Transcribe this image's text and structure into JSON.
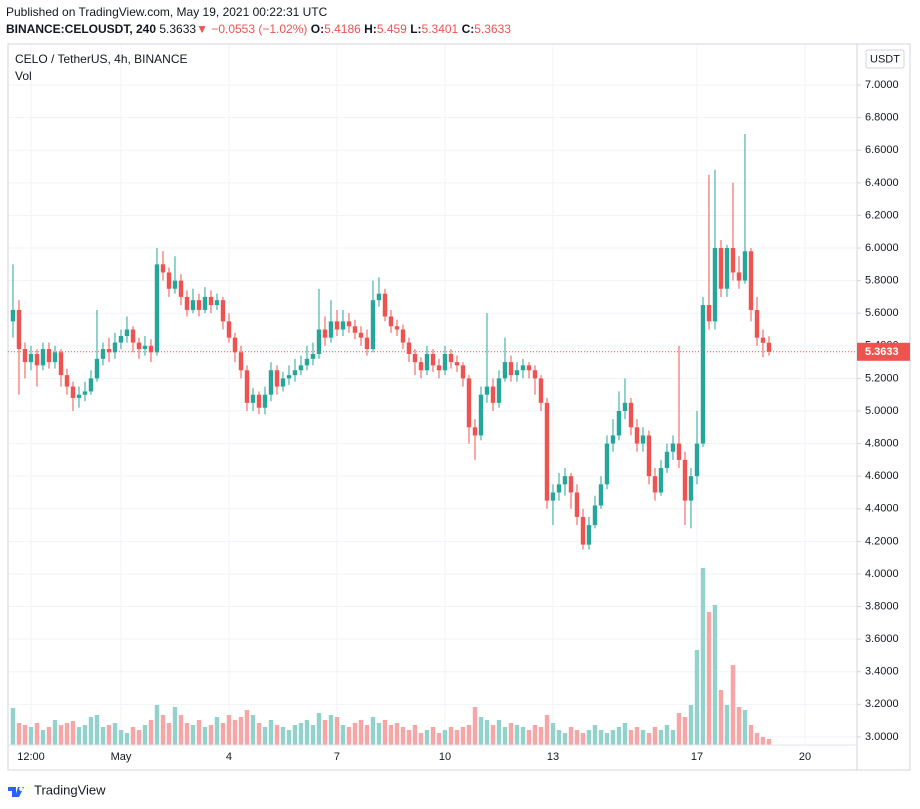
{
  "header": {
    "published": "Published on TradingView.com, May 19, 2021 00:22:31 UTC",
    "symbol": "BINANCE:CELOUSDT, 240",
    "change": {
      "value": -0.0553,
      "label": "−0.0553"
    },
    "change_pct": {
      "value": -1.02,
      "label": "(−1.02%)"
    },
    "o_label": "O:",
    "h_label": "H:",
    "l_label": "L:",
    "c_label": "C:"
  },
  "chart_data": {
    "type": "candlestick",
    "title": "CELO / TetherUS, 4h, BINANCE",
    "volume_label": "Vol",
    "y_unit": "USDT",
    "up_color": "#26a69a",
    "down_color": "#ef5350",
    "volume_up_color": "#93d2cb",
    "volume_down_color": "#f5a6a5",
    "grid": true,
    "ylim": [
      2.797,
      7.252
    ],
    "yticks": [
      {
        "value": 3,
        "label": "3.0000"
      },
      {
        "value": 3.2,
        "label": "3.2000"
      },
      {
        "value": 3.4,
        "label": "3.4000"
      },
      {
        "value": 3.6,
        "label": "3.6000"
      },
      {
        "value": 3.8,
        "label": "3.8000"
      },
      {
        "value": 4,
        "label": "4.0000"
      },
      {
        "value": 4.2,
        "label": "4.2000"
      },
      {
        "value": 4.4,
        "label": "4.4000"
      },
      {
        "value": 4.6,
        "label": "4.6000"
      },
      {
        "value": 4.8,
        "label": "4.8000"
      },
      {
        "value": 5,
        "label": "5.0000"
      },
      {
        "value": 5.2,
        "label": "5.2000"
      },
      {
        "value": 5.4,
        "label": "5.4000"
      },
      {
        "value": 5.6,
        "label": "5.6000"
      },
      {
        "value": 5.8,
        "label": "5.8000"
      },
      {
        "value": 6,
        "label": "6.0000"
      },
      {
        "value": 6.2,
        "label": "6.2000"
      },
      {
        "value": 6.4,
        "label": "6.4000"
      },
      {
        "value": 6.6,
        "label": "6.6000"
      },
      {
        "value": 6.8,
        "label": "6.8000"
      },
      {
        "value": 7,
        "label": "7.0000"
      }
    ],
    "xlim": [
      -0.83,
      140.67
    ],
    "xticks": [
      {
        "value": 3,
        "label": "12:00"
      },
      {
        "value": 18,
        "label": "May"
      },
      {
        "value": 36,
        "label": "4"
      },
      {
        "value": 54,
        "label": "7"
      },
      {
        "value": 72,
        "label": "10"
      },
      {
        "value": 90,
        "label": "13"
      },
      {
        "value": 114,
        "label": "17"
      },
      {
        "value": 132,
        "label": "20"
      }
    ],
    "vlim": [
      0,
      200
    ],
    "ohlc": [
      [
        5.55,
        5.9,
        5.45,
        5.62
      ],
      [
        5.62,
        5.68,
        5.1,
        5.38
      ],
      [
        5.38,
        5.42,
        5.2,
        5.3
      ],
      [
        5.3,
        5.4,
        5.25,
        5.35
      ],
      [
        5.35,
        5.38,
        5.15,
        5.28
      ],
      [
        5.28,
        5.42,
        5.25,
        5.38
      ],
      [
        5.38,
        5.42,
        5.26,
        5.3
      ],
      [
        5.3,
        5.4,
        5.26,
        5.36
      ],
      [
        5.36,
        5.38,
        5.15,
        5.22
      ],
      [
        5.22,
        5.26,
        5.1,
        5.15
      ],
      [
        5.15,
        5.18,
        5.0,
        5.08
      ],
      [
        5.08,
        5.15,
        5.02,
        5.1
      ],
      [
        5.1,
        5.18,
        5.06,
        5.12
      ],
      [
        5.12,
        5.25,
        5.1,
        5.2
      ],
      [
        5.2,
        5.62,
        5.18,
        5.32
      ],
      [
        5.32,
        5.42,
        5.28,
        5.38
      ],
      [
        5.38,
        5.45,
        5.3,
        5.36
      ],
      [
        5.36,
        5.48,
        5.32,
        5.42
      ],
      [
        5.42,
        5.5,
        5.38,
        5.46
      ],
      [
        5.46,
        5.58,
        5.42,
        5.5
      ],
      [
        5.5,
        5.52,
        5.36,
        5.42
      ],
      [
        5.42,
        5.45,
        5.32,
        5.38
      ],
      [
        5.38,
        5.46,
        5.34,
        5.4
      ],
      [
        5.4,
        5.44,
        5.3,
        5.36
      ],
      [
        5.36,
        6.0,
        5.34,
        5.9
      ],
      [
        5.9,
        5.98,
        5.8,
        5.85
      ],
      [
        5.85,
        5.88,
        5.7,
        5.75
      ],
      [
        5.75,
        5.95,
        5.72,
        5.8
      ],
      [
        5.8,
        5.84,
        5.65,
        5.7
      ],
      [
        5.7,
        5.74,
        5.58,
        5.62
      ],
      [
        5.62,
        5.75,
        5.6,
        5.68
      ],
      [
        5.68,
        5.72,
        5.58,
        5.62
      ],
      [
        5.62,
        5.76,
        5.6,
        5.7
      ],
      [
        5.7,
        5.74,
        5.6,
        5.65
      ],
      [
        5.65,
        5.72,
        5.62,
        5.68
      ],
      [
        5.68,
        5.7,
        5.5,
        5.55
      ],
      [
        5.55,
        5.6,
        5.42,
        5.45
      ],
      [
        5.45,
        5.48,
        5.3,
        5.36
      ],
      [
        5.36,
        5.4,
        5.2,
        5.25
      ],
      [
        5.25,
        5.28,
        5.0,
        5.05
      ],
      [
        5.05,
        5.14,
        5.0,
        5.1
      ],
      [
        5.1,
        5.12,
        4.98,
        5.02
      ],
      [
        5.02,
        5.15,
        4.98,
        5.1
      ],
      [
        5.1,
        5.3,
        5.06,
        5.25
      ],
      [
        5.25,
        5.28,
        5.1,
        5.15
      ],
      [
        5.15,
        5.24,
        5.12,
        5.2
      ],
      [
        5.2,
        5.28,
        5.16,
        5.22
      ],
      [
        5.22,
        5.32,
        5.18,
        5.25
      ],
      [
        5.25,
        5.34,
        5.22,
        5.28
      ],
      [
        5.28,
        5.4,
        5.25,
        5.32
      ],
      [
        5.32,
        5.42,
        5.28,
        5.35
      ],
      [
        5.35,
        5.75,
        5.32,
        5.5
      ],
      [
        5.5,
        5.58,
        5.4,
        5.45
      ],
      [
        5.45,
        5.68,
        5.42,
        5.55
      ],
      [
        5.55,
        5.62,
        5.46,
        5.5
      ],
      [
        5.5,
        5.62,
        5.46,
        5.55
      ],
      [
        5.55,
        5.6,
        5.48,
        5.52
      ],
      [
        5.52,
        5.56,
        5.44,
        5.48
      ],
      [
        5.48,
        5.52,
        5.4,
        5.45
      ],
      [
        5.45,
        5.5,
        5.34,
        5.38
      ],
      [
        5.38,
        5.8,
        5.36,
        5.68
      ],
      [
        5.68,
        5.82,
        5.64,
        5.72
      ],
      [
        5.72,
        5.75,
        5.55,
        5.58
      ],
      [
        5.58,
        5.62,
        5.48,
        5.52
      ],
      [
        5.52,
        5.56,
        5.46,
        5.5
      ],
      [
        5.5,
        5.53,
        5.38,
        5.42
      ],
      [
        5.42,
        5.45,
        5.3,
        5.35
      ],
      [
        5.35,
        5.38,
        5.22,
        5.3
      ],
      [
        5.3,
        5.33,
        5.2,
        5.25
      ],
      [
        5.25,
        5.4,
        5.22,
        5.35
      ],
      [
        5.35,
        5.38,
        5.24,
        5.28
      ],
      [
        5.28,
        5.32,
        5.2,
        5.25
      ],
      [
        5.25,
        5.4,
        5.22,
        5.35
      ],
      [
        5.35,
        5.38,
        5.26,
        5.3
      ],
      [
        5.3,
        5.34,
        5.24,
        5.28
      ],
      [
        5.28,
        5.3,
        5.15,
        5.2
      ],
      [
        5.2,
        5.22,
        4.8,
        4.9
      ],
      [
        4.9,
        4.95,
        4.7,
        4.85
      ],
      [
        4.85,
        5.15,
        4.82,
        5.1
      ],
      [
        5.1,
        5.6,
        5.05,
        5.15
      ],
      [
        5.15,
        5.2,
        5.0,
        5.05
      ],
      [
        5.05,
        5.25,
        5.02,
        5.2
      ],
      [
        5.2,
        5.45,
        5.18,
        5.3
      ],
      [
        5.3,
        5.34,
        5.18,
        5.22
      ],
      [
        5.22,
        5.3,
        5.18,
        5.25
      ],
      [
        5.25,
        5.32,
        5.2,
        5.28
      ],
      [
        5.28,
        5.3,
        5.2,
        5.25
      ],
      [
        5.25,
        5.28,
        5.1,
        5.2
      ],
      [
        5.2,
        5.22,
        5.0,
        5.05
      ],
      [
        5.05,
        5.08,
        4.4,
        4.45
      ],
      [
        4.45,
        4.55,
        4.3,
        4.5
      ],
      [
        4.5,
        4.62,
        4.45,
        4.55
      ],
      [
        4.55,
        4.65,
        4.48,
        4.6
      ],
      [
        4.6,
        4.62,
        4.4,
        4.5
      ],
      [
        4.5,
        4.55,
        4.3,
        4.35
      ],
      [
        4.35,
        4.4,
        4.15,
        4.18
      ],
      [
        4.18,
        4.35,
        4.15,
        4.3
      ],
      [
        4.3,
        4.48,
        4.28,
        4.42
      ],
      [
        4.42,
        4.6,
        4.4,
        4.55
      ],
      [
        4.55,
        4.85,
        4.52,
        4.8
      ],
      [
        4.8,
        4.95,
        4.75,
        4.85
      ],
      [
        4.85,
        5.12,
        4.82,
        5.0
      ],
      [
        5.0,
        5.2,
        4.95,
        5.05
      ],
      [
        5.05,
        5.08,
        4.85,
        4.9
      ],
      [
        4.9,
        4.95,
        4.75,
        4.8
      ],
      [
        4.8,
        4.9,
        4.75,
        4.85
      ],
      [
        4.85,
        4.88,
        4.55,
        4.6
      ],
      [
        4.6,
        4.65,
        4.45,
        4.5
      ],
      [
        4.5,
        4.7,
        4.48,
        4.65
      ],
      [
        4.65,
        4.8,
        4.62,
        4.75
      ],
      [
        4.75,
        4.85,
        4.7,
        4.8
      ],
      [
        4.8,
        5.4,
        4.65,
        4.7
      ],
      [
        4.7,
        4.75,
        4.3,
        4.45
      ],
      [
        4.45,
        4.65,
        4.28,
        4.6
      ],
      [
        4.6,
        5.0,
        4.55,
        4.8
      ],
      [
        4.8,
        5.7,
        4.78,
        5.65
      ],
      [
        5.65,
        6.45,
        5.5,
        5.55
      ],
      [
        5.55,
        6.48,
        5.5,
        6.0
      ],
      [
        6.0,
        6.05,
        5.7,
        5.75
      ],
      [
        5.75,
        6.02,
        5.7,
        6.0
      ],
      [
        6.0,
        6.4,
        5.8,
        5.85
      ],
      [
        5.85,
        5.95,
        5.75,
        5.8
      ],
      [
        5.8,
        6.7,
        5.78,
        5.98
      ],
      [
        5.98,
        6.0,
        5.55,
        5.62
      ],
      [
        5.62,
        5.7,
        5.4,
        5.45
      ],
      [
        5.45,
        5.5,
        5.33,
        5.4186
      ],
      [
        5.4186,
        5.459,
        5.3401,
        5.3633
      ]
    ],
    "volume": [
      37,
      22,
      20,
      18,
      22,
      15,
      18,
      25,
      20,
      22,
      24,
      18,
      20,
      28,
      30,
      18,
      20,
      22,
      15,
      12,
      18,
      15,
      20,
      25,
      40,
      30,
      22,
      38,
      30,
      22,
      20,
      25,
      18,
      20,
      28,
      22,
      30,
      25,
      28,
      35,
      30,
      22,
      18,
      25,
      20,
      18,
      15,
      20,
      22,
      25,
      20,
      32,
      25,
      30,
      28,
      20,
      18,
      22,
      25,
      20,
      28,
      22,
      25,
      20,
      22,
      18,
      15,
      20,
      12,
      15,
      18,
      12,
      15,
      18,
      15,
      18,
      20,
      38,
      28,
      25,
      20,
      25,
      18,
      22,
      20,
      18,
      15,
      20,
      18,
      30,
      22,
      15,
      12,
      18,
      15,
      12,
      15,
      20,
      15,
      12,
      15,
      18,
      22,
      15,
      18,
      15,
      12,
      18,
      15,
      20,
      15,
      32,
      28,
      40,
      95,
      177,
      133,
      140,
      55,
      40,
      80,
      38,
      35,
      20,
      12,
      8,
      6
    ]
  },
  "footer": {
    "brand": "TradingView"
  }
}
